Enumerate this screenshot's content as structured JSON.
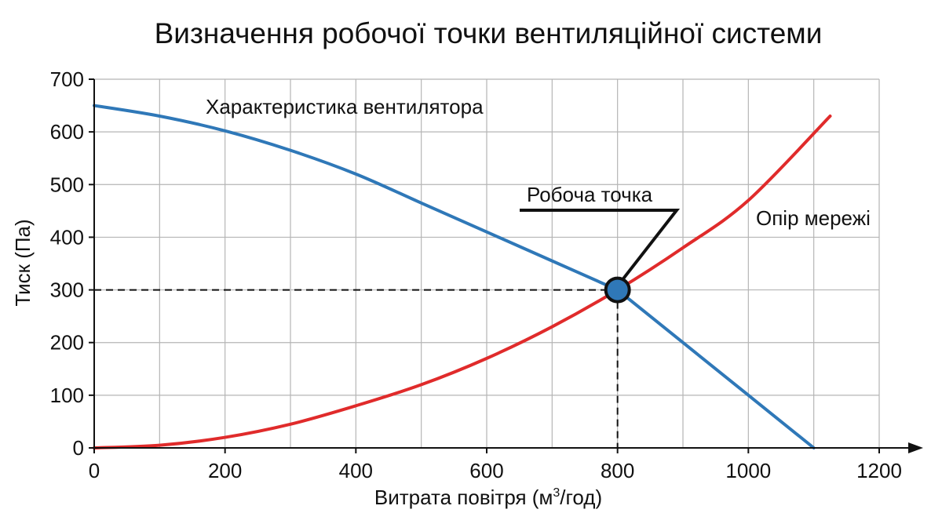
{
  "chart_data": {
    "type": "line",
    "title": "Визначення робочої точки вентиляційної системи",
    "xlabel": "Витрата повітря (м",
    "xlabel_sup": "3",
    "xlabel_suffix": "/год)",
    "ylabel": "Тиск (Па)",
    "xlim": [
      0,
      1200
    ],
    "ylim": [
      0,
      700
    ],
    "xticks": [
      0,
      200,
      400,
      600,
      800,
      1000,
      1200
    ],
    "yticks": [
      0,
      100,
      200,
      300,
      400,
      500,
      600,
      700
    ],
    "grid": true,
    "series": [
      {
        "name": "Характеристика вентилятора",
        "color": "#2f78b8",
        "x": [
          0,
          100,
          200,
          300,
          400,
          500,
          600,
          700,
          800,
          900,
          1000,
          1100
        ],
        "y": [
          650,
          630,
          602,
          565,
          520,
          465,
          410,
          355,
          300,
          200,
          100,
          0
        ]
      },
      {
        "name": "Опір мережі",
        "color": "#e02b2b",
        "x": [
          0,
          100,
          200,
          300,
          400,
          500,
          600,
          700,
          800,
          900,
          1000,
          1125
        ],
        "y": [
          0,
          5,
          20,
          45,
          80,
          120,
          170,
          230,
          300,
          380,
          470,
          630
        ]
      }
    ],
    "annotations": {
      "fan_curve_label": "Характеристика вентилятора",
      "network_curve_label": "Опір мережі",
      "operating_point_label": "Робоча точка",
      "operating_point": {
        "x": 800,
        "y": 300
      }
    },
    "colors": {
      "fan": "#2f78b8",
      "network": "#e02b2b",
      "point_fill": "#2f78b8",
      "point_stroke": "#111111",
      "grid": "#b5b5b5",
      "axis": "#111111"
    }
  }
}
